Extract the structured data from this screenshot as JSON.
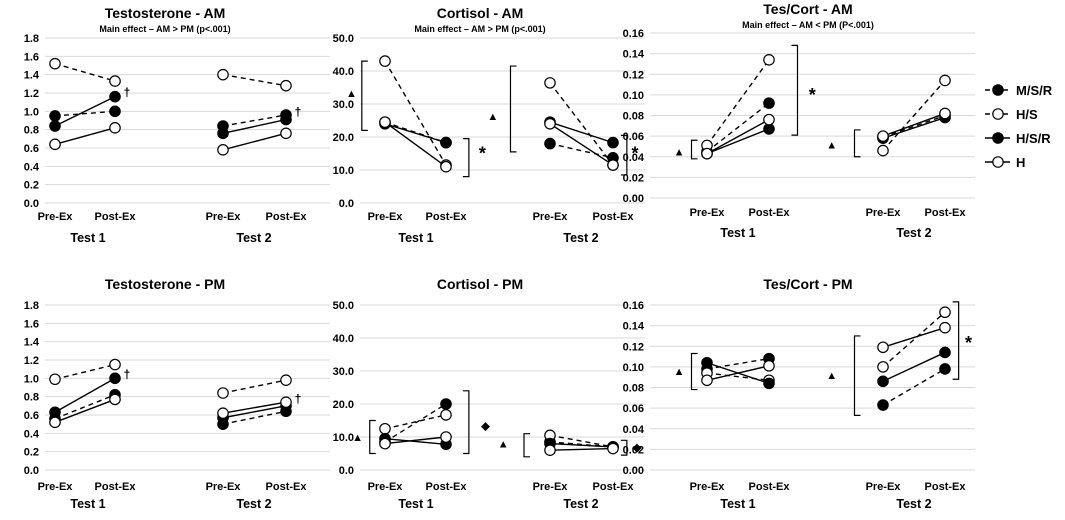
{
  "legend": {
    "items": [
      {
        "label": "M/S/R",
        "style": "dashed",
        "marker": "filled"
      },
      {
        "label": "H/S",
        "style": "dashed",
        "marker": "open"
      },
      {
        "label": "H/S/R",
        "style": "solid",
        "marker": "filled"
      },
      {
        "label": "H",
        "style": "solid",
        "marker": "open"
      }
    ]
  },
  "chart_data": [
    {
      "id": "testosterone-am",
      "type": "line",
      "title": "Testosterone - AM",
      "subtitle": "Main effect – AM > PM (p<.001)",
      "ylim": [
        0,
        1.8
      ],
      "ytick_step": 0.2,
      "ytick_decimals": 1,
      "categories": [
        "Pre-Ex",
        "Post-Ex",
        "Pre-Ex",
        "Post-Ex"
      ],
      "groups": [
        "Test  1",
        "Test  2"
      ],
      "series": [
        {
          "name": "M/S/R",
          "values": [
            0.95,
            1.0,
            0.84,
            0.96
          ]
        },
        {
          "name": "H/S",
          "values": [
            1.52,
            1.33,
            1.4,
            1.28
          ]
        },
        {
          "name": "H/S/R",
          "values": [
            0.84,
            1.16,
            0.76,
            0.91
          ]
        },
        {
          "name": "H",
          "values": [
            0.64,
            0.82,
            0.58,
            0.76
          ]
        }
      ],
      "annotations": [
        {
          "text": "†",
          "category": 1,
          "value": 1.16
        },
        {
          "text": "†",
          "category": 3,
          "value": 0.95
        }
      ]
    },
    {
      "id": "cortisol-am",
      "type": "line",
      "title": "Cortisol - AM",
      "subtitle": "Main effect – AM > PM (p<.001)",
      "ylim": [
        0,
        50
      ],
      "ytick_step": 10,
      "ytick_decimals": 1,
      "categories": [
        "Pre-Ex",
        "Post-Ex",
        "Pre-Ex",
        "Post-Ex"
      ],
      "groups": [
        "Test  1",
        "Test  2"
      ],
      "series": [
        {
          "name": "M/S/R",
          "values": [
            24.5,
            18.3,
            18.0,
            13.7
          ]
        },
        {
          "name": "H/S",
          "values": [
            43.0,
            11.5,
            36.4,
            11.5
          ]
        },
        {
          "name": "H/S/R",
          "values": [
            24.0,
            18.3,
            24.5,
            18.3
          ]
        },
        {
          "name": "H",
          "values": [
            24.5,
            11.0,
            24.0,
            11.5
          ]
        }
      ],
      "annotations": [
        {
          "text": "▲",
          "category": -0.55,
          "value": 33.3
        },
        {
          "text": "*",
          "category": 1.35,
          "value": 15.0
        },
        {
          "text": "▲",
          "category": 1.45,
          "value": 26.3
        },
        {
          "text": "*",
          "category": 3.35,
          "value": 15.0
        }
      ],
      "brackets": [
        {
          "side": "left",
          "category": -0.38,
          "from": 22.0,
          "to": 43.0
        },
        {
          "side": "right",
          "category": 1.22,
          "from": 8.0,
          "to": 19.5
        },
        {
          "side": "left",
          "category": 1.62,
          "from": 15.5,
          "to": 41.5
        },
        {
          "side": "right",
          "category": 3.22,
          "from": 8.5,
          "to": 20.5
        }
      ]
    },
    {
      "id": "tescort-am",
      "type": "line",
      "title": "Tes/Cort - AM",
      "subtitle": "Main effect – AM < PM (P<.001)",
      "ylim": [
        0,
        0.16
      ],
      "ytick_step": 0.02,
      "ytick_decimals": 2,
      "categories": [
        "Pre-Ex",
        "Post-Ex",
        "Pre-Ex",
        "Post-Ex"
      ],
      "groups": [
        "Test 1",
        "Test 2"
      ],
      "series": [
        {
          "name": "M/S/R",
          "values": [
            0.045,
            0.092,
            0.059,
            0.08
          ]
        },
        {
          "name": "H/S",
          "values": [
            0.051,
            0.134,
            0.046,
            0.114
          ]
        },
        {
          "name": "H/S/R",
          "values": [
            0.043,
            0.067,
            0.058,
            0.078
          ]
        },
        {
          "name": "H",
          "values": [
            0.043,
            0.076,
            0.06,
            0.082
          ]
        }
      ],
      "annotations": [
        {
          "text": "▲",
          "category": -0.45,
          "value": 0.045
        },
        {
          "text": "*",
          "category": 1.38,
          "value": 0.1
        },
        {
          "text": "▲",
          "category": 1.55,
          "value": 0.052
        }
      ],
      "brackets": [
        {
          "side": "left",
          "category": -0.25,
          "from": 0.038,
          "to": 0.056
        },
        {
          "side": "right",
          "category": 1.25,
          "from": 0.061,
          "to": 0.148
        },
        {
          "side": "left",
          "category": 1.75,
          "from": 0.04,
          "to": 0.066
        }
      ]
    },
    {
      "id": "testosterone-pm",
      "type": "line",
      "title": "Testosterone - PM",
      "subtitle": "",
      "ylim": [
        0,
        1.8
      ],
      "ytick_step": 0.2,
      "ytick_decimals": 1,
      "categories": [
        "Pre-Ex",
        "Post-Ex",
        "Pre-Ex",
        "Post-Ex"
      ],
      "groups": [
        "Test  1",
        "Test  2"
      ],
      "series": [
        {
          "name": "M/S/R",
          "values": [
            0.56,
            0.82,
            0.5,
            0.64
          ]
        },
        {
          "name": "H/S",
          "values": [
            0.99,
            1.15,
            0.84,
            0.98
          ]
        },
        {
          "name": "H/S/R",
          "values": [
            0.63,
            1.0,
            0.57,
            0.7
          ]
        },
        {
          "name": "H",
          "values": [
            0.52,
            0.77,
            0.62,
            0.74
          ]
        }
      ],
      "annotations": [
        {
          "text": "†",
          "category": 1,
          "value": 1.0
        },
        {
          "text": "†",
          "category": 3,
          "value": 0.73
        }
      ]
    },
    {
      "id": "cortisol-pm",
      "type": "line",
      "title": "Cortisol - PM",
      "subtitle": "",
      "ylim": [
        0,
        50
      ],
      "ytick_step": 10,
      "ytick_decimals": 1,
      "categories": [
        "Pre-Ex",
        "Post-Ex",
        "Pre-Ex",
        "Post-Ex"
      ],
      "groups": [
        "Test  1",
        "Test  2"
      ],
      "series": [
        {
          "name": "M/S/R",
          "values": [
            8.5,
            20.0,
            8.5,
            7.0
          ]
        },
        {
          "name": "H/S",
          "values": [
            12.5,
            16.7,
            10.5,
            7.0
          ]
        },
        {
          "name": "H/S/R",
          "values": [
            9.5,
            7.8,
            8.0,
            7.0
          ]
        },
        {
          "name": "H",
          "values": [
            8.0,
            10.0,
            6.0,
            6.5
          ]
        }
      ],
      "annotations": [
        {
          "text": "▲",
          "category": -0.45,
          "value": 10.0
        },
        {
          "text": "◆",
          "category": 1.38,
          "value": 13.5
        },
        {
          "text": "▲",
          "category": 1.55,
          "value": 8.0
        },
        {
          "text": "◆",
          "category": 3.38,
          "value": 7.0
        }
      ],
      "brackets": [
        {
          "side": "left",
          "category": -0.25,
          "from": 5.0,
          "to": 15.0
        },
        {
          "side": "right",
          "category": 1.22,
          "from": 5.0,
          "to": 24.0
        },
        {
          "side": "left",
          "category": 1.75,
          "from": 4.0,
          "to": 11.0
        },
        {
          "side": "right",
          "category": 3.22,
          "from": 4.5,
          "to": 9.0
        }
      ]
    },
    {
      "id": "tescort-pm",
      "type": "line",
      "title": "Tes/Cort - PM",
      "subtitle": "",
      "ylim": [
        0,
        0.16
      ],
      "ytick_step": 0.02,
      "ytick_decimals": 2,
      "categories": [
        "Pre-Ex",
        "Post-Ex",
        "Pre-Ex",
        "Post-Ex"
      ],
      "groups": [
        "Test 1",
        "Test 2"
      ],
      "series": [
        {
          "name": "M/S/R",
          "values": [
            0.098,
            0.108,
            0.063,
            0.098
          ]
        },
        {
          "name": "H/S",
          "values": [
            0.094,
            0.087,
            0.1,
            0.153
          ]
        },
        {
          "name": "H/S/R",
          "values": [
            0.104,
            0.084,
            0.086,
            0.114
          ]
        },
        {
          "name": "H",
          "values": [
            0.087,
            0.101,
            0.119,
            0.138
          ]
        }
      ],
      "annotations": [
        {
          "text": "▲",
          "category": -0.45,
          "value": 0.096
        },
        {
          "text": "▲",
          "category": 1.55,
          "value": 0.092
        },
        {
          "text": "*",
          "category": 3.38,
          "value": 0.123
        }
      ],
      "brackets": [
        {
          "side": "left",
          "category": -0.25,
          "from": 0.078,
          "to": 0.113
        },
        {
          "side": "left",
          "category": 1.75,
          "from": 0.053,
          "to": 0.13
        },
        {
          "side": "right",
          "category": 3.22,
          "from": 0.088,
          "to": 0.163
        }
      ]
    }
  ]
}
